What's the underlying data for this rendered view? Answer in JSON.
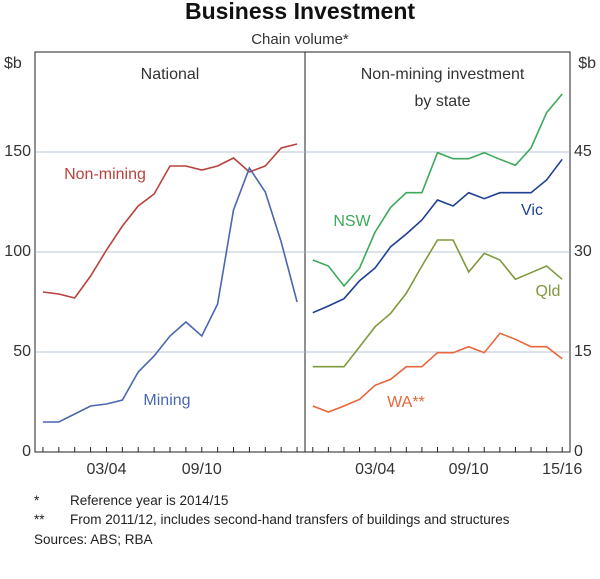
{
  "title": "Business Investment",
  "subtitle": "Chain volume*",
  "chart_data": [
    {
      "type": "line",
      "title": [
        "National"
      ],
      "ylabel": "$b",
      "axis_side": "left",
      "categories": [
        null,
        null,
        null,
        null,
        "03/04",
        null,
        null,
        null,
        null,
        null,
        "09/10",
        null,
        null,
        null,
        null,
        null,
        null
      ],
      "ylim": [
        0,
        200
      ],
      "yticks": [
        0,
        50,
        100,
        150
      ],
      "grid": true,
      "series": [
        {
          "name": "Non-mining",
          "color": "#b8423c",
          "values": [
            80,
            79,
            77,
            88,
            101,
            113,
            123,
            129,
            143,
            143,
            141,
            143,
            147,
            140,
            143,
            152,
            154
          ]
        },
        {
          "name": "Mining",
          "color": "#4a67b0",
          "values": [
            15,
            15,
            19,
            23,
            24,
            26,
            40,
            48,
            58,
            65,
            58,
            74,
            121,
            142,
            130,
            105,
            75
          ]
        }
      ]
    },
    {
      "type": "line",
      "title": [
        "Non-mining investment",
        "by state"
      ],
      "ylabel": "$b",
      "axis_side": "right",
      "categories": [
        null,
        null,
        null,
        null,
        "03/04",
        null,
        null,
        null,
        null,
        null,
        "09/10",
        null,
        null,
        null,
        null,
        null,
        "15/16"
      ],
      "ylim": [
        0,
        60
      ],
      "yticks": [
        0,
        15,
        30,
        45
      ],
      "grid": true,
      "series": [
        {
          "name": "NSW",
          "color": "#3da95a",
          "values": [
            28.8,
            27.9,
            24.9,
            27.6,
            33,
            36.7,
            38.9,
            38.9,
            44.9,
            44,
            44,
            44.9,
            43.9,
            43,
            45.6,
            50.9,
            53.7
          ]
        },
        {
          "name": "Vic",
          "color": "#1d3f94",
          "values": [
            20.9,
            21.9,
            23,
            25.7,
            27.6,
            30.8,
            32.7,
            34.8,
            37.8,
            36.9,
            38.9,
            38,
            38.9,
            38.9,
            38.9,
            40.8,
            43.9
          ]
        },
        {
          "name": "Qld",
          "color": "#7f9a3c",
          "values": [
            12.8,
            12.8,
            12.8,
            15.8,
            18.8,
            20.8,
            23.8,
            27.9,
            31.8,
            31.8,
            27,
            29.8,
            28.8,
            25.9,
            26.9,
            27.9,
            25.9
          ]
        },
        {
          "name": "WA**",
          "color": "#e8663a",
          "values": [
            6.9,
            6,
            6.9,
            7.9,
            10,
            10.9,
            12.8,
            12.8,
            14.9,
            14.9,
            15.8,
            14.9,
            17.8,
            16.9,
            15.8,
            15.8,
            14
          ]
        }
      ]
    }
  ],
  "notes": [
    {
      "mark": "*",
      "text": "Reference year is 2014/15"
    },
    {
      "mark": "**",
      "text": "From 2011/12, includes second-hand transfers of buildings and structures"
    }
  ],
  "sources": "Sources: ABS; RBA"
}
